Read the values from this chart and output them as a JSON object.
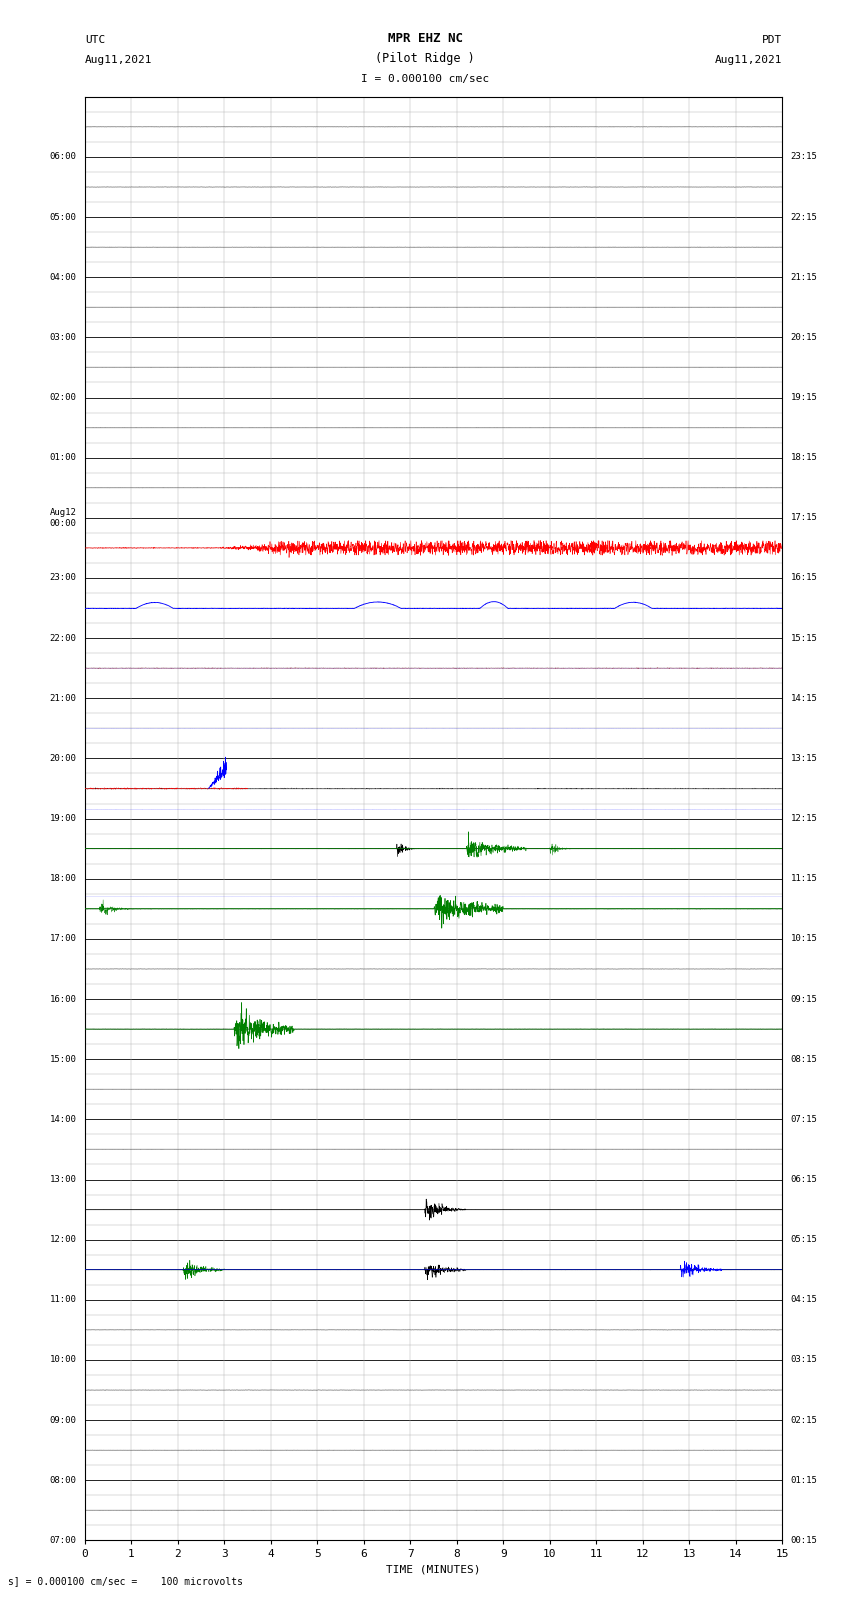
{
  "title_line1": "MPR EHZ NC",
  "title_line2": "(Pilot Ridge )",
  "title_line3": "I = 0.000100 cm/sec",
  "left_label_top": "UTC",
  "left_label_date": "Aug11,2021",
  "right_label_top": "PDT",
  "right_label_date": "Aug11,2021",
  "bottom_label": "TIME (MINUTES)",
  "footer_text": "s] = 0.000100 cm/sec =    100 microvolts",
  "utc_labels": [
    "07:00",
    "08:00",
    "09:00",
    "10:00",
    "11:00",
    "12:00",
    "13:00",
    "14:00",
    "15:00",
    "16:00",
    "17:00",
    "18:00",
    "19:00",
    "20:00",
    "21:00",
    "22:00",
    "23:00",
    "Aug12\n00:00",
    "01:00",
    "02:00",
    "03:00",
    "04:00",
    "05:00",
    "06:00"
  ],
  "pdt_labels": [
    "00:15",
    "01:15",
    "02:15",
    "03:15",
    "04:15",
    "05:15",
    "06:15",
    "07:15",
    "08:15",
    "09:15",
    "10:15",
    "11:15",
    "12:15",
    "13:15",
    "14:15",
    "15:15",
    "16:15",
    "17:15",
    "18:15",
    "19:15",
    "20:15",
    "21:15",
    "22:15",
    "23:15"
  ],
  "num_rows": 24,
  "subrows_per_row": 4,
  "minutes_per_row": 15,
  "bg_color": "#ffffff",
  "major_grid_color": "#000000",
  "minor_grid_color": "#aaaaaa",
  "trace_color": "#000000"
}
